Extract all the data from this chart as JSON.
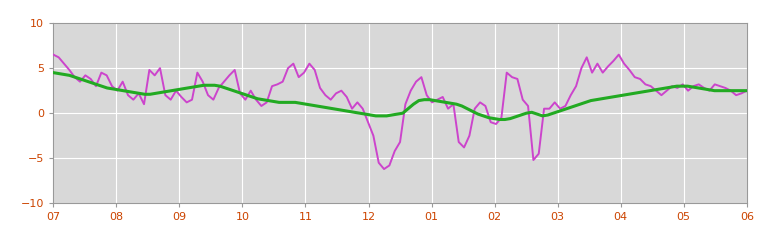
{
  "xlim": [
    0,
    132
  ],
  "ylim": [
    -10,
    10
  ],
  "yticks": [
    -10,
    -5,
    0,
    5,
    10
  ],
  "xtick_positions": [
    0,
    12,
    24,
    36,
    48,
    60,
    72,
    84,
    96,
    108,
    120,
    132
  ],
  "xtick_labels": [
    "07",
    "08",
    "09",
    "10",
    "11",
    "12",
    "01",
    "02",
    "03",
    "04",
    "05",
    "06"
  ],
  "bg_color": "#d8d8d8",
  "plot_bg_color": "#d8d8d8",
  "outer_bg_color": "#ffffff",
  "line_color_purple": "#cc44cc",
  "line_color_green": "#22aa22",
  "purple_lw": 1.4,
  "green_lw": 2.2,
  "purple_y": [
    6.5,
    6.2,
    5.5,
    4.8,
    4.0,
    3.5,
    4.2,
    3.8,
    3.0,
    4.5,
    4.2,
    3.0,
    2.5,
    3.5,
    2.0,
    1.5,
    2.2,
    1.0,
    4.8,
    4.2,
    5.0,
    2.0,
    1.5,
    2.5,
    1.8,
    1.2,
    1.5,
    4.5,
    3.5,
    2.0,
    1.5,
    2.8,
    3.5,
    4.2,
    4.8,
    2.2,
    1.5,
    2.5,
    1.5,
    0.8,
    1.2,
    3.0,
    3.2,
    3.5,
    5.0,
    5.5,
    4.0,
    4.5,
    5.5,
    4.8,
    2.8,
    2.0,
    1.5,
    2.2,
    2.5,
    1.8,
    0.5,
    1.2,
    0.5,
    -1.0,
    -2.5,
    -5.5,
    -6.2,
    -5.8,
    -4.2,
    -3.2,
    1.0,
    2.5,
    3.5,
    4.0,
    2.0,
    1.2,
    1.5,
    1.8,
    0.5,
    1.0,
    -3.2,
    -3.8,
    -2.5,
    0.5,
    1.2,
    0.8,
    -1.0,
    -1.2,
    -0.5,
    4.5,
    4.0,
    3.8,
    1.5,
    0.8,
    -5.2,
    -4.5,
    0.5,
    0.5,
    1.2,
    0.5,
    0.8,
    2.0,
    3.0,
    5.0,
    6.2,
    4.5,
    5.5,
    4.5,
    5.2,
    5.8,
    6.5,
    5.5,
    4.8,
    4.0,
    3.8,
    3.2,
    3.0,
    2.5,
    2.0,
    2.5,
    3.0,
    2.8,
    3.2,
    2.5,
    3.0,
    3.2,
    2.8,
    2.5,
    3.2,
    3.0,
    2.8,
    2.5,
    2.0,
    2.2,
    2.5
  ],
  "green_y": [
    4.5,
    4.4,
    4.3,
    4.2,
    4.0,
    3.8,
    3.6,
    3.4,
    3.2,
    3.0,
    2.8,
    2.7,
    2.6,
    2.5,
    2.4,
    2.3,
    2.2,
    2.1,
    2.1,
    2.2,
    2.3,
    2.4,
    2.5,
    2.6,
    2.7,
    2.8,
    2.9,
    3.0,
    3.1,
    3.1,
    3.1,
    3.0,
    2.8,
    2.6,
    2.4,
    2.2,
    2.0,
    1.8,
    1.6,
    1.5,
    1.4,
    1.3,
    1.2,
    1.2,
    1.2,
    1.2,
    1.1,
    1.0,
    0.9,
    0.8,
    0.7,
    0.6,
    0.5,
    0.4,
    0.3,
    0.2,
    0.1,
    0.0,
    -0.1,
    -0.2,
    -0.3,
    -0.3,
    -0.3,
    -0.2,
    -0.1,
    0.0,
    0.5,
    1.0,
    1.4,
    1.5,
    1.5,
    1.4,
    1.3,
    1.2,
    1.1,
    1.0,
    0.8,
    0.5,
    0.2,
    -0.1,
    -0.3,
    -0.5,
    -0.6,
    -0.7,
    -0.7,
    -0.6,
    -0.4,
    -0.2,
    0.0,
    0.1,
    -0.1,
    -0.3,
    -0.2,
    0.0,
    0.2,
    0.4,
    0.6,
    0.8,
    1.0,
    1.2,
    1.4,
    1.5,
    1.6,
    1.7,
    1.8,
    1.9,
    2.0,
    2.1,
    2.2,
    2.3,
    2.4,
    2.5,
    2.6,
    2.7,
    2.8,
    2.9,
    3.0,
    3.0,
    3.0,
    2.9,
    2.8,
    2.7,
    2.6,
    2.5,
    2.5,
    2.5,
    2.5,
    2.5,
    2.5,
    2.5
  ]
}
